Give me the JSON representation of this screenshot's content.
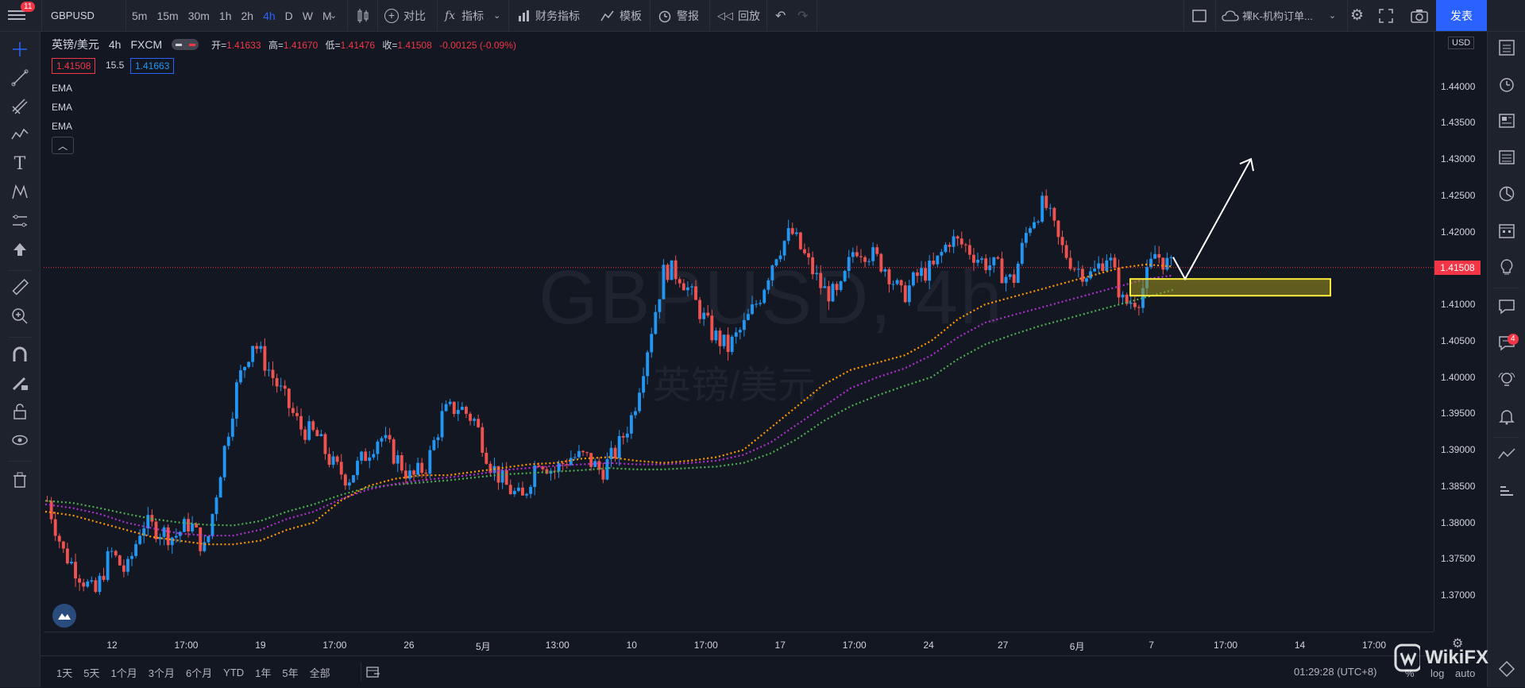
{
  "topbar": {
    "notification_count": "11",
    "symbol": "GBPUSD",
    "intervals": [
      "5m",
      "15m",
      "30m",
      "1h",
      "2h",
      "4h",
      "D",
      "W",
      "M"
    ],
    "active_interval": "4h",
    "compare_label": "对比",
    "indicators_label": "指标",
    "financials_label": "财务指标",
    "templates_label": "模板",
    "alert_label": "警报",
    "replay_label": "回放",
    "layout_name": "裸K-机构订单...",
    "publish_label": "发表"
  },
  "legend": {
    "title": "英镑/美元",
    "interval": "4h",
    "exchange": "FXCM",
    "open_label": "开=",
    "open": "1.41633",
    "high_label": "高=",
    "high": "1.41670",
    "low_label": "低=",
    "low": "1.41476",
    "close_label": "收=",
    "close": "1.41508",
    "change": "-0.00125 (-0.09%)",
    "sell_price": "1.41508",
    "spread": "15.5",
    "buy_price": "1.41663",
    "indicators": [
      "EMA",
      "EMA",
      "EMA"
    ]
  },
  "watermark": {
    "symbol": "GBPUSD, 4h",
    "name": "英镑/美元"
  },
  "price_axis": {
    "currency": "USD",
    "last_price": "1.41508"
  },
  "bottombar": {
    "ranges": [
      "1天",
      "5天",
      "1个月",
      "3个月",
      "6个月",
      "YTD",
      "1年",
      "5年",
      "全部"
    ],
    "clock": "01:29:28 (UTC+8)",
    "percent": "%",
    "log": "log",
    "auto": "auto"
  },
  "branding": {
    "wikifx": "WikiFX"
  },
  "right_badge": "4",
  "colors": {
    "up": "#2196f3",
    "down": "#ef5350",
    "ema_fast": "#ff9800",
    "ema_mid": "#b02fd0",
    "ema_slow": "#4caf50",
    "zone_stroke": "#ffeb3b"
  },
  "chart_data": {
    "type": "line",
    "symbol": "GBPUSD",
    "timeframe": "4h",
    "ylim": [
      1.365,
      1.4475
    ],
    "y_ticks": [
      "1.44000",
      "1.43500",
      "1.43000",
      "1.42500",
      "1.42000",
      "1.41500",
      "1.41000",
      "1.40500",
      "1.40000",
      "1.39500",
      "1.39000",
      "1.38500",
      "1.38000",
      "1.37500",
      "1.37000"
    ],
    "x_ticks": [
      "12",
      "17:00",
      "19",
      "17:00",
      "26",
      "5月",
      "13:00",
      "10",
      "17:00",
      "17",
      "17:00",
      "24",
      "27",
      "6月",
      "7",
      "17:00",
      "14",
      "17:00"
    ],
    "price_path": [
      1.383,
      1.376,
      1.373,
      1.37,
      1.376,
      1.373,
      1.38,
      1.379,
      1.378,
      1.38,
      1.376,
      1.388,
      1.399,
      1.405,
      1.401,
      1.397,
      1.393,
      1.392,
      1.388,
      1.386,
      1.389,
      1.392,
      1.389,
      1.386,
      1.388,
      1.395,
      1.396,
      1.394,
      1.388,
      1.385,
      1.383,
      1.389,
      1.387,
      1.389,
      1.389,
      1.387,
      1.39,
      1.395,
      1.405,
      1.415,
      1.414,
      1.41,
      1.406,
      1.404,
      1.407,
      1.411,
      1.417,
      1.42,
      1.416,
      1.412,
      1.411,
      1.418,
      1.417,
      1.415,
      1.411,
      1.414,
      1.415,
      1.419,
      1.418,
      1.416,
      1.415,
      1.413,
      1.421,
      1.424,
      1.418,
      1.415,
      1.414,
      1.417,
      1.41,
      1.411,
      1.417,
      1.4151
    ],
    "ema_fast": [
      1.3815,
      1.381,
      1.38,
      1.379,
      1.378,
      1.3775,
      1.377,
      1.377,
      1.3775,
      1.379,
      1.38,
      1.383,
      1.385,
      1.386,
      1.3865,
      1.3865,
      1.387,
      1.3875,
      1.388,
      1.3882,
      1.3888,
      1.389,
      1.3885,
      1.3882,
      1.3885,
      1.389,
      1.39,
      1.393,
      1.396,
      1.399,
      1.401,
      1.402,
      1.403,
      1.405,
      1.408,
      1.41,
      1.411,
      1.412,
      1.413,
      1.414,
      1.415,
      1.4155,
      1.4152
    ],
    "ema_mid": [
      1.3825,
      1.382,
      1.3812,
      1.38,
      1.3792,
      1.3785,
      1.3782,
      1.3782,
      1.379,
      1.3805,
      1.3815,
      1.3832,
      1.3845,
      1.3853,
      1.3858,
      1.3862,
      1.3866,
      1.3872,
      1.3875,
      1.3878,
      1.388,
      1.3882,
      1.388,
      1.388,
      1.3882,
      1.3885,
      1.3893,
      1.391,
      1.3935,
      1.396,
      1.3985,
      1.4,
      1.4012,
      1.403,
      1.4055,
      1.4075,
      1.4085,
      1.4095,
      1.4105,
      1.4115,
      1.4125,
      1.4135,
      1.414
    ],
    "ema_slow": [
      1.383,
      1.3827,
      1.382,
      1.3812,
      1.3805,
      1.38,
      1.3797,
      1.3796,
      1.3802,
      1.3815,
      1.3825,
      1.3838,
      1.3848,
      1.3852,
      1.3855,
      1.3858,
      1.3862,
      1.3866,
      1.3868,
      1.387,
      1.3872,
      1.3875,
      1.3873,
      1.3873,
      1.3875,
      1.3877,
      1.3882,
      1.3895,
      1.3915,
      1.394,
      1.396,
      1.3975,
      1.3988,
      1.4,
      1.4025,
      1.4045,
      1.4058,
      1.407,
      1.408,
      1.409,
      1.41,
      1.411,
      1.412
    ],
    "zone": {
      "y_low": 1.4112,
      "y_high": 1.4135
    },
    "last_price": 1.41508
  }
}
